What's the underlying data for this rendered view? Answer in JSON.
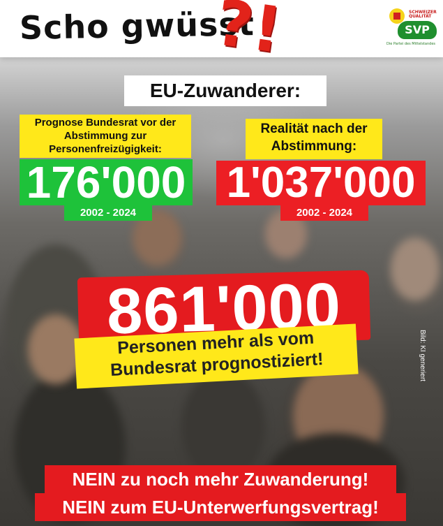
{
  "header": {
    "title": "Scho gwüsst",
    "punctuation": "?!",
    "logo": {
      "brand": "SVP",
      "slogan_top": "SCHWEIZER QUALITÄT",
      "tagline": "Die Partei des Mittelstandes"
    }
  },
  "topic": "EU-Zuwanderer:",
  "forecast": {
    "label": "Prognose Bundesrat vor der Abstimmung zur Personenfreizügigkeit:",
    "value": "176'000",
    "period": "2002 - 2024",
    "color": "#1ec23a"
  },
  "reality": {
    "label": "Realität nach der Abstimmung:",
    "value": "1'037'000",
    "period": "2002 - 2024",
    "color": "#ec1f24"
  },
  "difference": {
    "value": "861'000",
    "text": "Personen mehr als vom Bundesrat prognostiziert!"
  },
  "image_credit": "Bild: KI generiert",
  "slogans": [
    "NEIN zu noch mehr Zuwanderung!",
    "NEIN zum EU-Unterwerfungsvertrag!"
  ],
  "colors": {
    "accent_red": "#e41b1f",
    "accent_yellow": "#ffe81a",
    "accent_green": "#1ec23a"
  }
}
